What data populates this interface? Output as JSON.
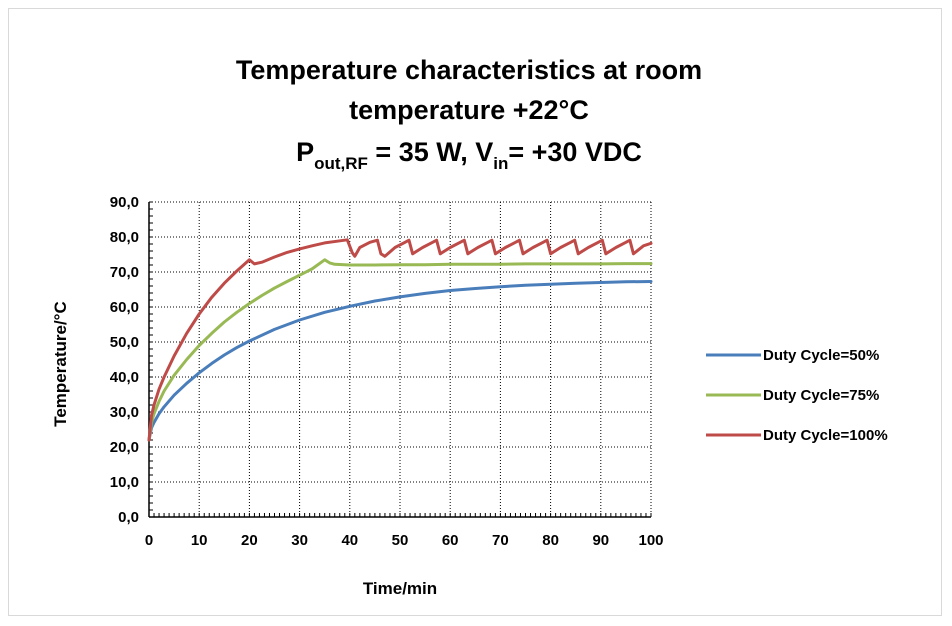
{
  "chart_data": {
    "type": "line",
    "title": {
      "line1": "Temperature characteristics at room",
      "line2": "temperature +22°C",
      "line3": {
        "p_main": "P",
        "p_sub": "out,RF",
        "p_rest": " = 35 W, V",
        "v_sub": "in",
        "v_rest": "= +30 VDC"
      }
    },
    "xlabel": "Time/min",
    "ylabel": "Temperature/°C",
    "xlim": [
      0,
      100
    ],
    "ylim": [
      0,
      90
    ],
    "x_ticks": [
      "0",
      "10",
      "20",
      "30",
      "40",
      "50",
      "60",
      "70",
      "80",
      "90",
      "100"
    ],
    "y_ticks": [
      "0,0",
      "10,0",
      "20,0",
      "30,0",
      "40,0",
      "50,0",
      "60,0",
      "70,0",
      "80,0",
      "90,0"
    ],
    "grid": true,
    "legend_position": "right",
    "series": [
      {
        "name": "Duty Cycle=50%",
        "color": "#4a7ebb",
        "x": [
          0,
          0.5,
          1,
          2,
          3,
          5,
          7.5,
          10,
          12.5,
          15,
          17.5,
          20,
          25,
          30,
          35,
          40,
          45,
          50,
          55,
          60,
          65,
          70,
          75,
          80,
          85,
          90,
          95,
          100
        ],
        "y": [
          22,
          25.5,
          27,
          29.5,
          31.5,
          34.8,
          38.2,
          41.2,
          43.9,
          46.3,
          48.4,
          50.3,
          53.6,
          56.3,
          58.5,
          60.2,
          61.7,
          62.9,
          63.9,
          64.7,
          65.3,
          65.8,
          66.2,
          66.5,
          66.8,
          67.0,
          67.2,
          67.3
        ]
      },
      {
        "name": "Duty Cycle=75%",
        "color": "#98b954",
        "x": [
          0,
          0.5,
          1,
          2,
          3,
          5,
          7.5,
          10,
          12.5,
          15,
          17.5,
          20,
          22.5,
          25,
          27.5,
          30,
          32.5,
          35,
          36,
          37,
          40,
          45,
          50,
          55,
          60,
          65,
          70,
          75,
          80,
          85,
          90,
          95,
          100
        ],
        "y": [
          22,
          27,
          29.5,
          33,
          36,
          40.5,
          45,
          49,
          52.5,
          55.7,
          58.5,
          61,
          63.3,
          65.4,
          67.3,
          69.1,
          70.9,
          73.5,
          72.6,
          72.2,
          72,
          72,
          72.1,
          72.1,
          72.2,
          72.2,
          72.2,
          72.3,
          72.3,
          72.3,
          72.3,
          72.4,
          72.4
        ]
      },
      {
        "name": "Duty Cycle=100%",
        "color": "#be4b48",
        "x": [
          0,
          0.5,
          1,
          2,
          3,
          5,
          7.5,
          10,
          12.5,
          15,
          17.5,
          20,
          21,
          22.5,
          25,
          27.5,
          30,
          32.5,
          35,
          37.5,
          39.5,
          40.5,
          41,
          42,
          44,
          45.5,
          46.2,
          47,
          49,
          51,
          51.8,
          52.5,
          54.5,
          56.5,
          57.3,
          58,
          60,
          62,
          62.8,
          63.5,
          65.5,
          67.5,
          68.3,
          69,
          71,
          73,
          73.8,
          74.5,
          76.5,
          78.5,
          79.3,
          80,
          82,
          84,
          84.8,
          85.5,
          87.5,
          89.5,
          90.3,
          91,
          93,
          95,
          95.8,
          96.5,
          98.5,
          100
        ],
        "y": [
          22,
          29,
          32,
          36.5,
          40,
          46,
          52.5,
          58,
          62.8,
          66.8,
          70.3,
          73.5,
          72.3,
          72.8,
          74.3,
          75.6,
          76.6,
          77.5,
          78.3,
          78.8,
          79.2,
          75.5,
          74.5,
          77,
          78.5,
          79.1,
          75.2,
          74.5,
          77,
          78.5,
          79.1,
          75.2,
          77,
          78.5,
          79.1,
          75.2,
          77,
          78.5,
          79.1,
          75.2,
          77,
          78.5,
          79.1,
          75.2,
          77,
          78.5,
          79.1,
          75.2,
          77,
          78.5,
          79.1,
          75.2,
          77,
          78.5,
          79.1,
          75.2,
          77,
          78.5,
          79.1,
          75.2,
          77,
          78.5,
          79.1,
          75.2,
          77.5,
          78.2
        ]
      }
    ]
  }
}
